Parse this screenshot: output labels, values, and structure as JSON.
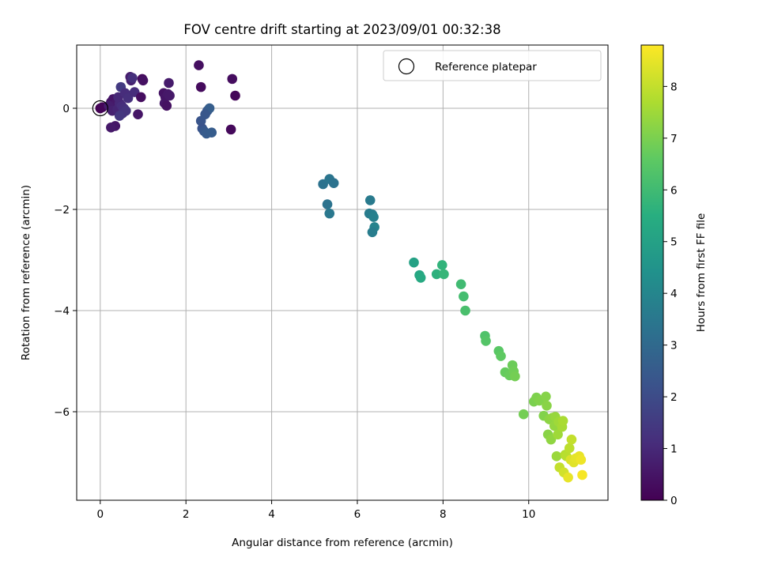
{
  "chart_data": {
    "type": "scatter",
    "title": "FOV centre drift starting at 2023/09/01 00:32:38",
    "xlabel": "Angular distance from reference (arcmin)",
    "ylabel": "Rotation from reference (arcmin)",
    "xlim": [
      -0.55,
      11.85
    ],
    "ylim": [
      -7.75,
      1.25
    ],
    "xticks": [
      0,
      2,
      4,
      6,
      8,
      10
    ],
    "xtick_labels": [
      "0",
      "2",
      "4",
      "6",
      "8",
      "10"
    ],
    "yticks": [
      0,
      -2,
      -4,
      -6
    ],
    "ytick_labels": [
      "0",
      "−2",
      "−4",
      "−6"
    ],
    "grid": true,
    "legend": {
      "position": "upper-right",
      "entries": [
        "Reference platepar"
      ]
    },
    "reference_point": {
      "x": 0,
      "y": 0
    },
    "colorbar": {
      "label": "Hours from first FF file",
      "colormap": "viridis",
      "range": [
        0,
        8.8
      ],
      "ticks": [
        0,
        1,
        2,
        3,
        4,
        5,
        6,
        7,
        8
      ],
      "tick_labels": [
        "0",
        "1",
        "2",
        "3",
        "4",
        "5",
        "6",
        "7",
        "8"
      ]
    },
    "series": [
      {
        "x": [
          0.0,
          0.05,
          0.25,
          0.3,
          0.35,
          0.2,
          0.28,
          0.4,
          0.45,
          0.5,
          0.55,
          0.52,
          0.6,
          0.45,
          0.48,
          0.35,
          0.25,
          0.42,
          0.58,
          0.65,
          0.7,
          0.72,
          0.8,
          0.75,
          0.88,
          0.95,
          0.98,
          1.0,
          1.48,
          1.5,
          1.52,
          1.55,
          1.58,
          1.6,
          1.62,
          2.3,
          2.35,
          3.08,
          3.15,
          3.05,
          2.35,
          2.38,
          2.42,
          2.48,
          2.5,
          2.55,
          2.6,
          2.45,
          5.2,
          5.35,
          5.45,
          5.3,
          5.35,
          6.3,
          6.28,
          6.35,
          6.38,
          6.4,
          6.35,
          7.32,
          7.45,
          7.48,
          7.85,
          7.98,
          8.02,
          8.42,
          8.48,
          8.52,
          8.98,
          9.0,
          9.3,
          9.35,
          9.45,
          9.55,
          9.62,
          9.65,
          9.68,
          9.88,
          10.12,
          10.18,
          10.25,
          10.35,
          10.4,
          10.42,
          10.45,
          10.48,
          10.52,
          10.55,
          10.6,
          10.62,
          10.65,
          10.68,
          10.7,
          10.72,
          10.78,
          10.8,
          10.82,
          10.85,
          10.88,
          10.92,
          10.95,
          10.98,
          11.0,
          11.05,
          11.1,
          11.18,
          11.22,
          11.25
        ],
        "y": [
          0.0,
          0.02,
          0.12,
          0.18,
          0.08,
          0.05,
          -0.05,
          -0.02,
          0.1,
          0.05,
          0.0,
          -0.1,
          -0.05,
          -0.15,
          0.42,
          -0.35,
          -0.38,
          0.22,
          0.3,
          0.2,
          0.62,
          0.55,
          0.32,
          0.6,
          -0.12,
          0.22,
          0.58,
          0.55,
          0.3,
          0.1,
          0.22,
          0.05,
          0.28,
          0.5,
          0.25,
          0.85,
          0.42,
          0.58,
          0.25,
          -0.42,
          -0.25,
          -0.4,
          -0.45,
          -0.5,
          -0.05,
          0.0,
          -0.48,
          -0.12,
          -1.5,
          -1.4,
          -1.48,
          -1.9,
          -2.08,
          -1.82,
          -2.08,
          -2.1,
          -2.15,
          -2.35,
          -2.45,
          -3.05,
          -3.3,
          -3.35,
          -3.28,
          -3.1,
          -3.28,
          -3.48,
          -3.72,
          -4.0,
          -4.5,
          -4.6,
          -4.8,
          -4.9,
          -5.22,
          -5.28,
          -5.08,
          -5.2,
          -5.3,
          -6.05,
          -5.8,
          -5.72,
          -5.78,
          -6.08,
          -5.7,
          -5.88,
          -6.45,
          -6.15,
          -6.55,
          -6.12,
          -6.28,
          -6.1,
          -6.88,
          -6.45,
          -6.2,
          -7.1,
          -6.3,
          -6.18,
          -7.2,
          -6.85,
          -6.88,
          -7.3,
          -6.72,
          -6.95,
          -6.55,
          -7.0,
          -6.92,
          -6.88,
          -6.95,
          -7.25
        ],
        "hours": [
          0.0,
          0.1,
          0.4,
          0.5,
          0.6,
          0.7,
          0.8,
          0.9,
          1.0,
          1.1,
          1.2,
          1.25,
          1.3,
          1.4,
          1.5,
          0.5,
          0.6,
          1.0,
          1.1,
          1.2,
          0.7,
          0.8,
          1.1,
          1.2,
          0.5,
          0.3,
          0.2,
          0.4,
          0.45,
          0.55,
          0.5,
          0.4,
          0.6,
          0.65,
          0.6,
          0.35,
          0.25,
          0.3,
          0.15,
          0.2,
          2.3,
          2.25,
          2.4,
          2.5,
          2.4,
          2.6,
          2.55,
          2.35,
          3.3,
          3.4,
          3.3,
          3.35,
          3.5,
          3.6,
          3.65,
          3.7,
          3.8,
          3.9,
          3.7,
          5.0,
          5.2,
          5.3,
          5.6,
          5.7,
          5.8,
          6.0,
          6.1,
          6.2,
          6.3,
          6.4,
          6.5,
          6.6,
          6.7,
          6.75,
          6.8,
          6.85,
          6.9,
          6.9,
          7.0,
          7.05,
          7.1,
          7.1,
          7.15,
          7.2,
          7.2,
          7.25,
          7.3,
          7.3,
          7.35,
          7.4,
          7.45,
          7.5,
          7.5,
          8.0,
          7.6,
          7.65,
          8.2,
          7.8,
          7.85,
          8.5,
          7.9,
          8.3,
          8.0,
          8.4,
          8.45,
          8.5,
          8.6,
          8.7
        ]
      }
    ]
  }
}
